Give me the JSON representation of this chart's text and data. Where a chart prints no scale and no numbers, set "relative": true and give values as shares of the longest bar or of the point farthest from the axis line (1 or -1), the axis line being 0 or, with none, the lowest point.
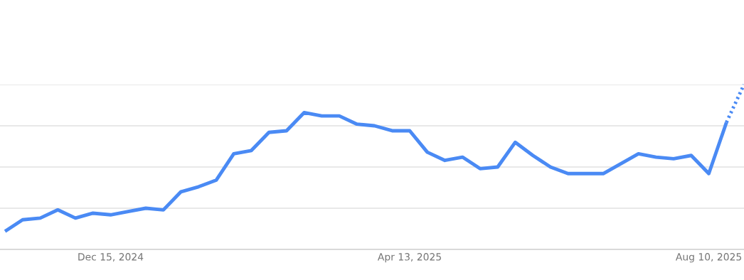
{
  "chart_data": {
    "type": "line",
    "relative": true,
    "grid": "y",
    "tick_labels": "x",
    "xlim": [
      "2024-11-01",
      "2025-08-24"
    ],
    "xticks": [
      {
        "value": "2024-12-15",
        "label": "Dec 15, 2024"
      },
      {
        "value": "2025-04-13",
        "label": "Apr 13, 2025"
      },
      {
        "value": "2025-08-10",
        "label": "Aug 10, 2025"
      }
    ],
    "series": [
      {
        "color": "#4a8af4",
        "line_style": "solid",
        "x": [
          "2024-11-03",
          "2024-11-10",
          "2024-11-17",
          "2024-11-24",
          "2024-12-01",
          "2024-12-08",
          "2024-12-15",
          "2024-12-22",
          "2024-12-29",
          "2025-01-05",
          "2025-01-12",
          "2025-01-19",
          "2025-01-26",
          "2025-02-02",
          "2025-02-09",
          "2025-02-16",
          "2025-02-23",
          "2025-03-02",
          "2025-03-09",
          "2025-03-16",
          "2025-03-23",
          "2025-03-30",
          "2025-04-06",
          "2025-04-13",
          "2025-04-20",
          "2025-04-27",
          "2025-05-04",
          "2025-05-11",
          "2025-05-18",
          "2025-05-25",
          "2025-06-01",
          "2025-06-08",
          "2025-06-15",
          "2025-06-22",
          "2025-06-29",
          "2025-07-06",
          "2025-07-13",
          "2025-07-20",
          "2025-07-27",
          "2025-08-03",
          "2025-08-10",
          "2025-08-17"
        ],
        "values": [
          0.11,
          0.18,
          0.19,
          0.24,
          0.19,
          0.22,
          0.21,
          0.23,
          0.25,
          0.24,
          0.35,
          0.38,
          0.42,
          0.58,
          0.6,
          0.71,
          0.72,
          0.83,
          0.81,
          0.81,
          0.76,
          0.75,
          0.72,
          0.72,
          0.59,
          0.54,
          0.56,
          0.49,
          0.5,
          0.65,
          0.57,
          0.5,
          0.46,
          0.46,
          0.46,
          0.52,
          0.58,
          0.56,
          0.55,
          0.57,
          0.46,
          0.77
        ]
      },
      {
        "color": "#4a8af4",
        "line_style": "dotted",
        "x": [
          "2025-08-17",
          "2025-08-24"
        ],
        "values": [
          0.77,
          1.0
        ]
      }
    ]
  }
}
